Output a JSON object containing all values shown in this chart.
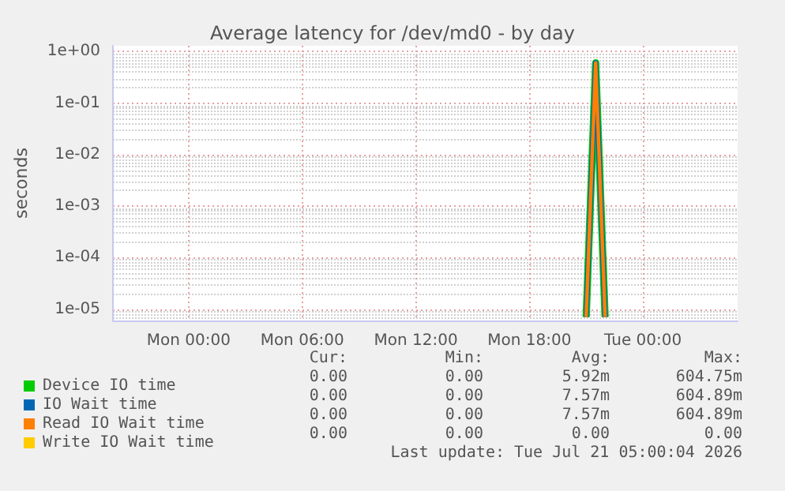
{
  "chart_data": {
    "type": "line",
    "title": "Average latency for /dev/md0 - by day",
    "ylabel": "seconds",
    "log": "y",
    "grid": true,
    "legend": "bottom left",
    "categories": [
      null,
      null,
      null,
      null,
      null,
      null,
      null,
      null,
      "Mon 00:00",
      null,
      null,
      null,
      null,
      null,
      null,
      null,
      null,
      null,
      null,
      null,
      "Mon 06:00",
      null,
      null,
      null,
      null,
      null,
      null,
      null,
      null,
      null,
      null,
      null,
      "Mon 12:00",
      null,
      null,
      null,
      null,
      null,
      null,
      null,
      null,
      null,
      null,
      null,
      "Mon 18:00",
      null,
      null,
      null,
      null,
      null,
      null,
      null,
      null,
      null,
      null,
      null,
      "Tue 00:00",
      null,
      null,
      null,
      null,
      null,
      null,
      null,
      null,
      null,
      null
    ],
    "ylim": [
      6e-06,
      1.3
    ],
    "yticks": [
      {
        "value": 1e-05,
        "label": "1e-05"
      },
      {
        "value": 0.0001,
        "label": "1e-04"
      },
      {
        "value": 0.001,
        "label": "1e-03"
      },
      {
        "value": 0.01,
        "label": "1e-02"
      },
      {
        "value": 0.1,
        "label": "1e-01"
      },
      {
        "value": 1,
        "label": "1e+00"
      }
    ],
    "series": [
      {
        "name": "Device IO time",
        "color": "#00cc00",
        "values": [
          null,
          null,
          null,
          null,
          null,
          null,
          null,
          null,
          null,
          null,
          null,
          null,
          null,
          null,
          null,
          null,
          null,
          null,
          null,
          null,
          null,
          null,
          null,
          null,
          null,
          null,
          null,
          null,
          null,
          null,
          null,
          null,
          null,
          null,
          null,
          null,
          null,
          null,
          null,
          null,
          null,
          null,
          null,
          null,
          null,
          null,
          null,
          null,
          null,
          null,
          7e-06,
          0.6047,
          7e-06,
          null,
          null,
          null,
          null,
          null,
          null,
          null,
          null,
          null,
          null,
          null,
          null,
          null,
          null
        ]
      },
      {
        "name": "IO Wait time",
        "color": "#0066b3",
        "values": [
          null,
          null,
          null,
          null,
          null,
          null,
          null,
          null,
          null,
          null,
          null,
          null,
          null,
          null,
          null,
          null,
          null,
          null,
          null,
          null,
          null,
          null,
          null,
          null,
          null,
          null,
          null,
          null,
          null,
          null,
          null,
          null,
          null,
          null,
          null,
          null,
          null,
          null,
          null,
          null,
          null,
          null,
          null,
          null,
          null,
          null,
          null,
          null,
          null,
          null,
          7e-06,
          0.6049,
          7e-06,
          null,
          null,
          null,
          null,
          null,
          null,
          null,
          null,
          null,
          null,
          null,
          null,
          null,
          null
        ]
      },
      {
        "name": "Read IO Wait time",
        "color": "#ff8000",
        "values": [
          null,
          null,
          null,
          null,
          null,
          null,
          null,
          null,
          null,
          null,
          null,
          null,
          null,
          null,
          null,
          null,
          null,
          null,
          null,
          null,
          null,
          null,
          null,
          null,
          null,
          null,
          null,
          null,
          null,
          null,
          null,
          null,
          null,
          null,
          null,
          null,
          null,
          null,
          null,
          null,
          null,
          null,
          null,
          null,
          null,
          null,
          null,
          null,
          null,
          null,
          7e-06,
          0.6049,
          7e-06,
          null,
          null,
          null,
          null,
          null,
          null,
          null,
          null,
          null,
          null,
          null,
          null,
          null,
          null
        ]
      },
      {
        "name": "Write IO Wait time",
        "color": "#ffcc00",
        "values": [
          null,
          null,
          null,
          null,
          null,
          null,
          null,
          null,
          null,
          null,
          null,
          null,
          null,
          null,
          null,
          null,
          null,
          null,
          null,
          null,
          null,
          null,
          null,
          null,
          null,
          null,
          null,
          null,
          null,
          null,
          null,
          null,
          null,
          null,
          null,
          null,
          null,
          null,
          null,
          null,
          null,
          null,
          null,
          null,
          null,
          null,
          null,
          null,
          null,
          null,
          null,
          null,
          null,
          null,
          null,
          null,
          null,
          null,
          null,
          null,
          null,
          null,
          null,
          null,
          null,
          null,
          null
        ]
      }
    ],
    "annotations": [
      "Cur:",
      "Min:",
      "Avg:",
      "Max:",
      "0.00",
      "0.00",
      "5.92m",
      "604.75m",
      "0.00",
      "0.00",
      "7.57m",
      "604.89m",
      "0.00",
      "0.00",
      "7.57m",
      "604.89m",
      "0.00",
      "0.00",
      "0.00",
      "0.00",
      "Last update: Tue Jul 21 05:00:04 2026"
    ]
  }
}
